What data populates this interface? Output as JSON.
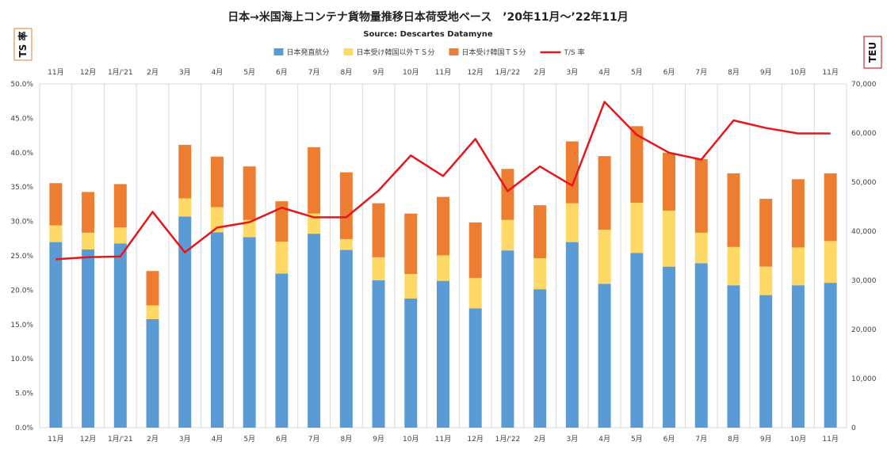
{
  "chart_data": {
    "type": "bar",
    "title": "日本→米国海上コンテナ貨物量推移日本荷受地ベース　’20年11月～’22年11月",
    "subtitle": "Source: Descartes Datamyne",
    "left_axis_label": "TS 率",
    "right_axis_label": "TEU",
    "categories": [
      "11月",
      "12月",
      "1月/'21",
      "2月",
      "3月",
      "4月",
      "5月",
      "6月",
      "7月",
      "8月",
      "9月",
      "10月",
      "11月",
      "12月",
      "1月/'22",
      "2月",
      "3月",
      "4月",
      "5月",
      "6月",
      "7月",
      "8月",
      "9月",
      "10月",
      "11月"
    ],
    "stacked": true,
    "series": [
      {
        "name": "日本発直航分",
        "kind": "bar",
        "axis": "right",
        "color": "#5b9bd5",
        "values": [
          37800,
          36300,
          37500,
          22100,
          43000,
          39800,
          38800,
          31400,
          39500,
          36200,
          30000,
          26300,
          29900,
          24300,
          36100,
          28200,
          37800,
          29300,
          35600,
          32800,
          33500,
          29000,
          27000,
          29000,
          29500
        ]
      },
      {
        "name": "日本受け韓国以外ＴＳ分",
        "kind": "bar",
        "axis": "right",
        "color": "#ffd966",
        "values": [
          3400,
          3400,
          3300,
          2800,
          3700,
          5100,
          3500,
          6500,
          4100,
          2200,
          4700,
          5000,
          5200,
          6200,
          6200,
          6300,
          7900,
          11000,
          10200,
          11400,
          6200,
          7800,
          5800,
          7700,
          8500
        ]
      },
      {
        "name": "日本受け韓国ＴＳ分",
        "kind": "bar",
        "axis": "right",
        "color": "#ed7d31",
        "values": [
          8600,
          8300,
          8800,
          7000,
          10900,
          10300,
          10900,
          8200,
          13500,
          13600,
          11000,
          12300,
          11900,
          11300,
          10400,
          10800,
          12600,
          15000,
          15600,
          11800,
          15000,
          15000,
          13800,
          13900,
          13800
        ]
      },
      {
        "name": "T/S 率",
        "kind": "line",
        "axis": "left",
        "color": "#e8151b",
        "values": [
          24.5,
          24.8,
          24.9,
          31.4,
          25.5,
          29.1,
          29.9,
          32.0,
          30.6,
          30.6,
          34.5,
          39.6,
          36.6,
          42.0,
          34.4,
          38.0,
          35.2,
          47.4,
          42.6,
          40.0,
          39.0,
          44.7,
          43.6,
          42.8,
          42.8
        ]
      }
    ],
    "y_left": {
      "min": 0,
      "max": 50,
      "step": 5,
      "tick_labels": [
        "0.0%",
        "5.0%",
        "10.0%",
        "15.0%",
        "20.0%",
        "25.0%",
        "30.0%",
        "35.0%",
        "40.0%",
        "45.0%",
        "50.0%"
      ]
    },
    "y_right": {
      "min": 0,
      "max": 70000,
      "step": 10000,
      "tick_labels": [
        "0",
        "10,000",
        "20,000",
        "30,000",
        "40,000",
        "50,000",
        "60,000",
        "70,000"
      ]
    },
    "legend_position": "top",
    "grid": {
      "vertical": true,
      "horizontal": false
    },
    "colors": {
      "left_box_border": "#e07b28",
      "right_box_border": "#c00000",
      "grid": "#d9d9d9"
    }
  }
}
